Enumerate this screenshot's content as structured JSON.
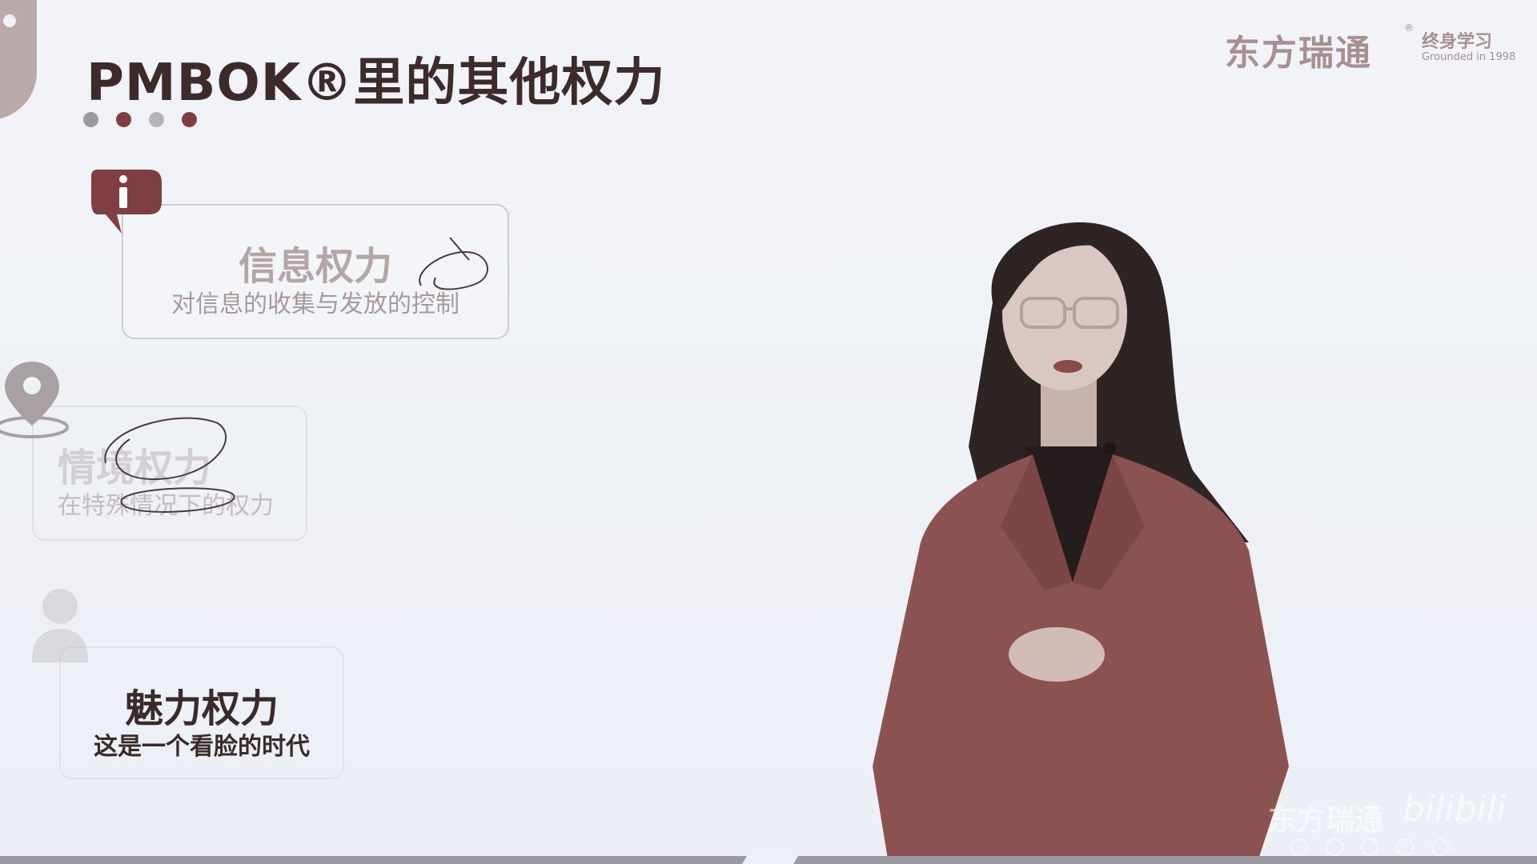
{
  "slide": {
    "title": "PMBOK®里的其他权力",
    "dot_colors": [
      "#9a9aa0",
      "#7f3f42",
      "#b5b5ba",
      "#7f3f42"
    ]
  },
  "logo": {
    "brand": "东方瑞通",
    "reg_mark": "®",
    "sub": "终身学习",
    "founded": "Grounded in 1998"
  },
  "cards": [
    {
      "title": "信息权力",
      "desc": "对信息的收集与发放的控制",
      "icon": "info-icon"
    },
    {
      "title": "情境权力",
      "desc": "在特殊情况下的权力",
      "icon": "location-pin-icon"
    },
    {
      "title": "魅力权力",
      "desc": "这是一个看脸的时代",
      "icon": "person-icon"
    }
  ],
  "watermark": {
    "brand": "东方瑞通",
    "site": "bilibili"
  },
  "colors": {
    "accent": "#7f3f42",
    "jacket": "#8a5352",
    "background": "#eef1f7"
  }
}
